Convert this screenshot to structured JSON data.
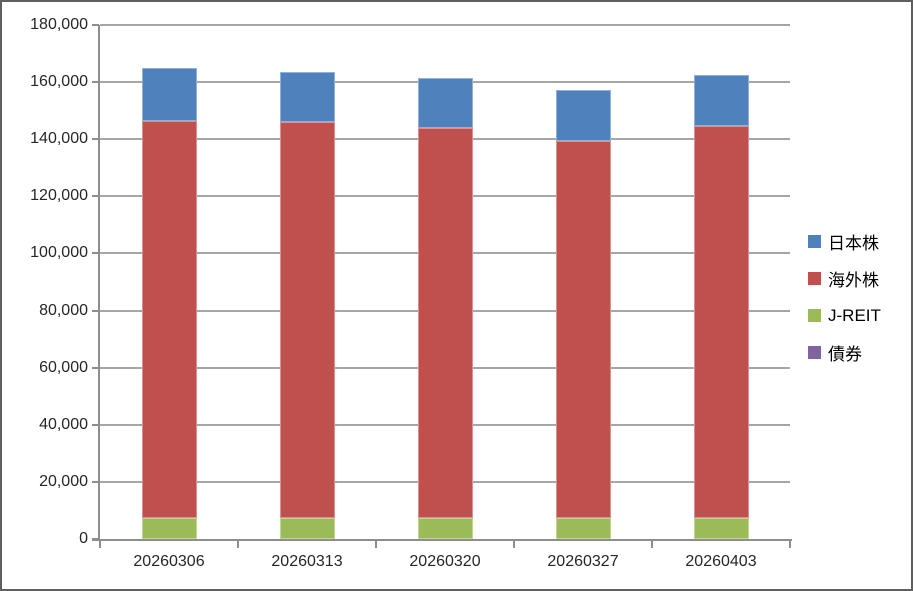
{
  "chart_data": {
    "type": "bar",
    "stacked": true,
    "title": "",
    "xlabel": "",
    "ylabel": "",
    "categories": [
      "20260306",
      "20260313",
      "20260320",
      "20260327",
      "20260403"
    ],
    "series": [
      {
        "name": "日本株",
        "color": "#4F81BD",
        "values": [
          18600,
          17500,
          17500,
          17900,
          17700
        ]
      },
      {
        "name": "海外株",
        "color": "#C0504D",
        "values": [
          138800,
          138500,
          136400,
          132100,
          137300
        ]
      },
      {
        "name": "J-REIT",
        "color": "#9BBB59",
        "values": [
          7500,
          7500,
          7500,
          7300,
          7400
        ]
      },
      {
        "name": "債券",
        "color": "#8064A2",
        "values": [
          0,
          0,
          0,
          0,
          0
        ]
      }
    ],
    "stack_order_bottom_to_top": [
      "債券",
      "J-REIT",
      "海外株",
      "日本株"
    ],
    "y_axis": {
      "min": 0,
      "max": 180000,
      "step": 20000,
      "tick_labels": [
        "0",
        "20,000",
        "40,000",
        "60,000",
        "80,000",
        "100,000",
        "120,000",
        "140,000",
        "160,000",
        "180,000"
      ]
    },
    "legend_position": "right",
    "grid": true,
    "axis_color": "#8E8E8E",
    "gridline_color": "#A6A6A6"
  }
}
